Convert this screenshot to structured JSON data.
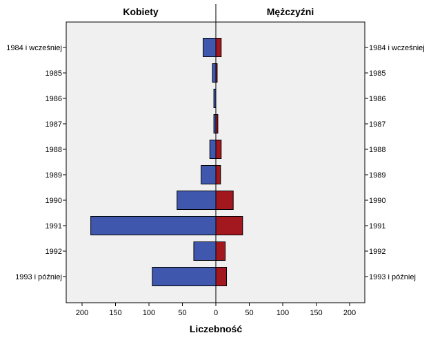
{
  "chart_data": {
    "type": "bar",
    "subtype": "population-pyramid",
    "categories": [
      "1984 i wcześniej",
      "1985",
      "1986",
      "1987",
      "1988",
      "1989",
      "1990",
      "1991",
      "1992",
      "1993 i później"
    ],
    "series": [
      {
        "name": "Kobiety",
        "side": "left",
        "color": "#3f57ad",
        "values": [
          19,
          5,
          3,
          3,
          9,
          22,
          58,
          187,
          33,
          95
        ]
      },
      {
        "name": "Mężczyźni",
        "side": "right",
        "color": "#a3171f",
        "values": [
          8,
          2,
          0,
          3,
          8,
          7,
          26,
          40,
          14,
          16
        ]
      }
    ],
    "xlabel": "Liczebność",
    "xticks": [
      200,
      150,
      100,
      50,
      0,
      50,
      100,
      150,
      200
    ],
    "xlim": [
      -225,
      225
    ],
    "plot_background": "#f0f0f0",
    "grid": false
  }
}
